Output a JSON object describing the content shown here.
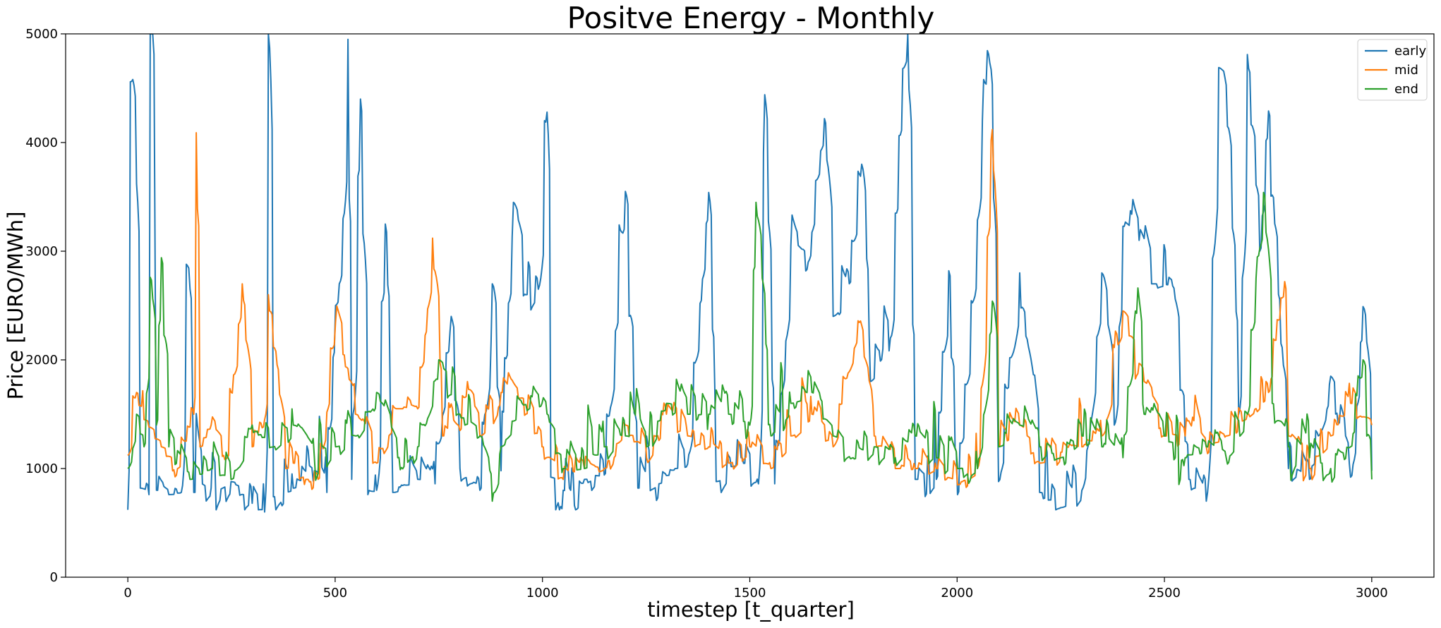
{
  "chart_data": {
    "type": "line",
    "title": "Positve Energy - Monthly",
    "xlabel": "timestep [t_quarter]",
    "ylabel": "Price [EURO/MWh]",
    "xlim": [
      -150,
      3150
    ],
    "ylim": [
      0,
      5000
    ],
    "xticks": [
      0,
      500,
      1000,
      1500,
      2000,
      2500,
      3000
    ],
    "yticks": [
      0,
      1000,
      2000,
      3000,
      4000,
      5000
    ],
    "grid": false,
    "legend": {
      "position": "top-right",
      "entries": [
        "early",
        "mid",
        "end"
      ]
    },
    "series": [
      {
        "name": "early",
        "color": "#1f77b4",
        "base": [
          [
            0,
            620
          ],
          [
            5,
            4560
          ],
          [
            12,
            4580
          ],
          [
            20,
            3620
          ],
          [
            30,
            820
          ],
          [
            50,
            760
          ],
          [
            55,
            5000
          ],
          [
            60,
            5000
          ],
          [
            70,
            800
          ],
          [
            100,
            760
          ],
          [
            130,
            780
          ],
          [
            140,
            2880
          ],
          [
            150,
            2650
          ],
          [
            160,
            780
          ],
          [
            200,
            820
          ],
          [
            250,
            880
          ],
          [
            280,
            760
          ],
          [
            300,
            680
          ],
          [
            330,
            600
          ],
          [
            340,
            5000
          ],
          [
            350,
            740
          ],
          [
            400,
            820
          ],
          [
            450,
            980
          ],
          [
            480,
            780
          ],
          [
            500,
            2500
          ],
          [
            510,
            2700
          ],
          [
            520,
            3300
          ],
          [
            530,
            4950
          ],
          [
            540,
            900
          ],
          [
            560,
            4400
          ],
          [
            580,
            760
          ],
          [
            600,
            800
          ],
          [
            620,
            3250
          ],
          [
            640,
            780
          ],
          [
            700,
            900
          ],
          [
            740,
            860
          ],
          [
            780,
            2400
          ],
          [
            800,
            1000
          ],
          [
            850,
            800
          ],
          [
            880,
            2700
          ],
          [
            900,
            980
          ],
          [
            930,
            3450
          ],
          [
            960,
            2600
          ],
          [
            990,
            2650
          ],
          [
            1010,
            4280
          ],
          [
            1020,
            920
          ],
          [
            1050,
            800
          ],
          [
            1080,
            620
          ],
          [
            1100,
            900
          ],
          [
            1150,
            940
          ],
          [
            1200,
            3550
          ],
          [
            1230,
            820
          ],
          [
            1280,
            860
          ],
          [
            1320,
            1000
          ],
          [
            1350,
            1040
          ],
          [
            1400,
            3540
          ],
          [
            1420,
            880
          ],
          [
            1480,
            1100
          ],
          [
            1520,
            860
          ],
          [
            1535,
            4440
          ],
          [
            1560,
            860
          ],
          [
            1600,
            3050
          ],
          [
            1640,
            2900
          ],
          [
            1660,
            3650
          ],
          [
            1680,
            4220
          ],
          [
            1700,
            2400
          ],
          [
            1740,
            2700
          ],
          [
            1770,
            3800
          ],
          [
            1790,
            1800
          ],
          [
            1820,
            2100
          ],
          [
            1840,
            2200
          ],
          [
            1870,
            4680
          ],
          [
            1880,
            5000
          ],
          [
            1900,
            900
          ],
          [
            1950,
            900
          ],
          [
            1980,
            2820
          ],
          [
            2000,
            760
          ],
          [
            2040,
            2550
          ],
          [
            2060,
            4200
          ],
          [
            2080,
            4730
          ],
          [
            2100,
            880
          ],
          [
            2150,
            2800
          ],
          [
            2200,
            780
          ],
          [
            2250,
            640
          ],
          [
            2300,
            800
          ],
          [
            2350,
            2800
          ],
          [
            2380,
            1400
          ],
          [
            2400,
            3230
          ],
          [
            2440,
            3100
          ],
          [
            2470,
            2700
          ],
          [
            2520,
            2680
          ],
          [
            2560,
            900
          ],
          [
            2600,
            700
          ],
          [
            2630,
            4690
          ],
          [
            2650,
            4530
          ],
          [
            2680,
            1500
          ],
          [
            2700,
            4810
          ],
          [
            2730,
            3000
          ],
          [
            2750,
            4290
          ],
          [
            2780,
            2150
          ],
          [
            2800,
            1000
          ],
          [
            2850,
            900
          ],
          [
            2900,
            1850
          ],
          [
            2950,
            920
          ],
          [
            2980,
            2490
          ],
          [
            3000,
            980
          ]
        ],
        "noise_amp": 520,
        "noise_floor": 620
      },
      {
        "name": "mid",
        "color": "#ff7f0e",
        "base": [
          [
            0,
            1120
          ],
          [
            20,
            1700
          ],
          [
            40,
            1450
          ],
          [
            80,
            1200
          ],
          [
            120,
            1000
          ],
          [
            160,
            1500
          ],
          [
            165,
            4090
          ],
          [
            175,
            1200
          ],
          [
            200,
            1400
          ],
          [
            240,
            1100
          ],
          [
            275,
            2700
          ],
          [
            300,
            1200
          ],
          [
            330,
            1450
          ],
          [
            340,
            2600
          ],
          [
            380,
            1000
          ],
          [
            400,
            1050
          ],
          [
            430,
            900
          ],
          [
            460,
            900
          ],
          [
            500,
            2350
          ],
          [
            520,
            2050
          ],
          [
            550,
            1500
          ],
          [
            600,
            1050
          ],
          [
            650,
            1550
          ],
          [
            700,
            1550
          ],
          [
            735,
            3120
          ],
          [
            760,
            1300
          ],
          [
            800,
            1350
          ],
          [
            820,
            1800
          ],
          [
            850,
            1300
          ],
          [
            900,
            1700
          ],
          [
            950,
            1650
          ],
          [
            1000,
            1200
          ],
          [
            1050,
            900
          ],
          [
            1100,
            1000
          ],
          [
            1150,
            1000
          ],
          [
            1200,
            1400
          ],
          [
            1250,
            1100
          ],
          [
            1300,
            1500
          ],
          [
            1350,
            1300
          ],
          [
            1400,
            1200
          ],
          [
            1450,
            1050
          ],
          [
            1500,
            1200
          ],
          [
            1550,
            1000
          ],
          [
            1600,
            1300
          ],
          [
            1650,
            1500
          ],
          [
            1700,
            1200
          ],
          [
            1760,
            2360
          ],
          [
            1800,
            1300
          ],
          [
            1850,
            1000
          ],
          [
            1900,
            1000
          ],
          [
            1950,
            1000
          ],
          [
            2000,
            850
          ],
          [
            2050,
            1000
          ],
          [
            2085,
            4120
          ],
          [
            2100,
            1200
          ],
          [
            2150,
            1400
          ],
          [
            2200,
            1050
          ],
          [
            2250,
            1150
          ],
          [
            2300,
            1200
          ],
          [
            2350,
            1300
          ],
          [
            2400,
            2450
          ],
          [
            2450,
            1800
          ],
          [
            2500,
            1300
          ],
          [
            2550,
            1300
          ],
          [
            2600,
            1200
          ],
          [
            2650,
            1300
          ],
          [
            2700,
            1500
          ],
          [
            2750,
            1700
          ],
          [
            2790,
            2720
          ],
          [
            2800,
            1300
          ],
          [
            2850,
            1000
          ],
          [
            2900,
            1300
          ],
          [
            2950,
            1600
          ],
          [
            3000,
            1400
          ]
        ],
        "noise_amp": 340,
        "noise_floor": 740
      },
      {
        "name": "end",
        "color": "#2ca02c",
        "base": [
          [
            0,
            1000
          ],
          [
            20,
            1500
          ],
          [
            40,
            1200
          ],
          [
            55,
            2760
          ],
          [
            70,
            1400
          ],
          [
            80,
            2940
          ],
          [
            100,
            1200
          ],
          [
            150,
            900
          ],
          [
            200,
            1000
          ],
          [
            250,
            900
          ],
          [
            300,
            1400
          ],
          [
            350,
            1200
          ],
          [
            400,
            1400
          ],
          [
            450,
            1100
          ],
          [
            500,
            1200
          ],
          [
            550,
            1300
          ],
          [
            600,
            1700
          ],
          [
            650,
            1100
          ],
          [
            700,
            1200
          ],
          [
            750,
            2000
          ],
          [
            800,
            1500
          ],
          [
            850,
            1300
          ],
          [
            880,
            700
          ],
          [
            900,
            1200
          ],
          [
            950,
            1600
          ],
          [
            1000,
            1600
          ],
          [
            1050,
            1000
          ],
          [
            1100,
            1000
          ],
          [
            1150,
            1200
          ],
          [
            1200,
            1300
          ],
          [
            1250,
            1200
          ],
          [
            1300,
            1600
          ],
          [
            1350,
            1500
          ],
          [
            1400,
            1500
          ],
          [
            1450,
            1500
          ],
          [
            1500,
            1400
          ],
          [
            1515,
            3450
          ],
          [
            1550,
            1300
          ],
          [
            1600,
            1600
          ],
          [
            1650,
            1700
          ],
          [
            1700,
            1300
          ],
          [
            1750,
            1100
          ],
          [
            1800,
            1200
          ],
          [
            1850,
            1100
          ],
          [
            1900,
            1300
          ],
          [
            1950,
            1100
          ],
          [
            2000,
            1000
          ],
          [
            2050,
            1000
          ],
          [
            2085,
            2540
          ],
          [
            2100,
            1200
          ],
          [
            2150,
            1400
          ],
          [
            2200,
            1200
          ],
          [
            2250,
            1100
          ],
          [
            2300,
            1300
          ],
          [
            2350,
            1200
          ],
          [
            2400,
            1100
          ],
          [
            2430,
            2450
          ],
          [
            2450,
            1500
          ],
          [
            2500,
            1300
          ],
          [
            2550,
            1100
          ],
          [
            2600,
            1200
          ],
          [
            2650,
            1100
          ],
          [
            2700,
            1500
          ],
          [
            2720,
            2750
          ],
          [
            2740,
            3540
          ],
          [
            2760,
            1600
          ],
          [
            2800,
            1200
          ],
          [
            2850,
            1100
          ],
          [
            2900,
            1000
          ],
          [
            2950,
            1200
          ],
          [
            2980,
            2000
          ],
          [
            3000,
            900
          ]
        ],
        "noise_amp": 420,
        "noise_floor": 560
      }
    ]
  }
}
